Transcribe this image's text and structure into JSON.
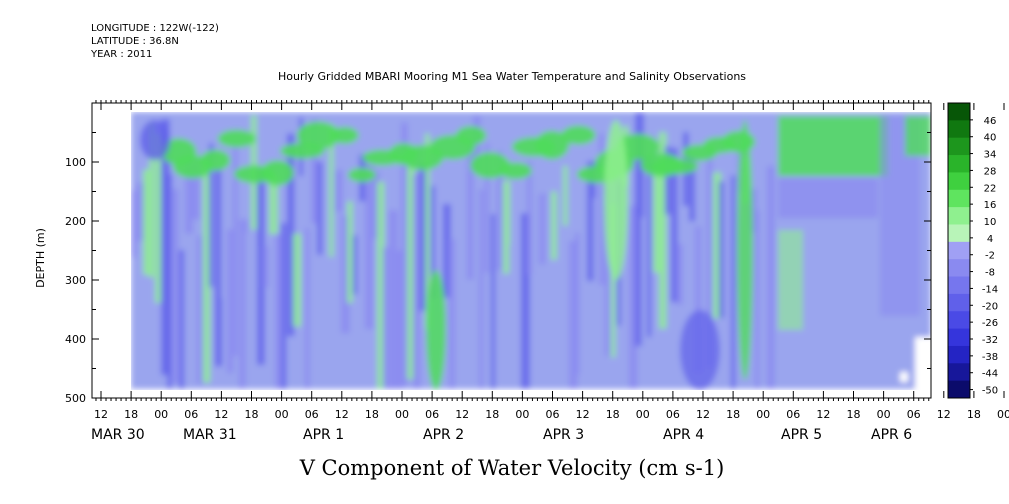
{
  "header": {
    "longitude": "LONGITUDE : 122W(-122)",
    "latitude": "LATITUDE : 36.8N",
    "year": "YEAR : 2011"
  },
  "chart_data": {
    "type": "heatmap",
    "title": "Hourly Gridded MBARI Mooring M1 Sea Water Temperature and Salinity Observations",
    "xlabel": "V Component of Water Velocity (cm s-1)",
    "ylabel": "DEPTH (m)",
    "ylim": [
      500,
      0
    ],
    "y_ticks": [
      100,
      200,
      300,
      400,
      500
    ],
    "x_hour_ticks": [
      "12",
      "18",
      "00",
      "06",
      "12",
      "18",
      "00",
      "06",
      "12",
      "18",
      "00",
      "06",
      "12",
      "18",
      "00",
      "06",
      "12",
      "18",
      "00",
      "06",
      "12",
      "18",
      "00",
      "06",
      "12",
      "18",
      "00",
      "06",
      "12",
      "18",
      "00",
      "06"
    ],
    "x_day_labels": [
      "MAR 30",
      "MAR 31",
      "APR  1",
      "APR  2",
      "APR  3",
      "APR  4",
      "APR  5",
      "APR  6"
    ],
    "colorbar": {
      "levels": [
        -50,
        -44,
        -38,
        -32,
        -26,
        -20,
        -14,
        -8,
        -2,
        4,
        10,
        16,
        22,
        28,
        34,
        40,
        46
      ],
      "labels": [
        "-50",
        "-44",
        "-38",
        "-32",
        "-26",
        "-20",
        "-14",
        "-8",
        "-2",
        "4",
        "10",
        "16",
        "22",
        "28",
        "34",
        "40",
        "46"
      ],
      "neg_colors": [
        "#0b0b6b",
        "#17179a",
        "#2424c4",
        "#3535dc",
        "#4a4ae6",
        "#6060ea",
        "#7676ee",
        "#8a8af0",
        "#a0a0f4"
      ],
      "pos_colors": [
        "#b8f4b8",
        "#8ff08f",
        "#5fe45f",
        "#3fd03f",
        "#2ab42a",
        "#1d961d",
        "#107810",
        "#075607"
      ]
    },
    "series_color_negative": "#9aa5ee",
    "series_color_positive": "#4fdc5a"
  }
}
